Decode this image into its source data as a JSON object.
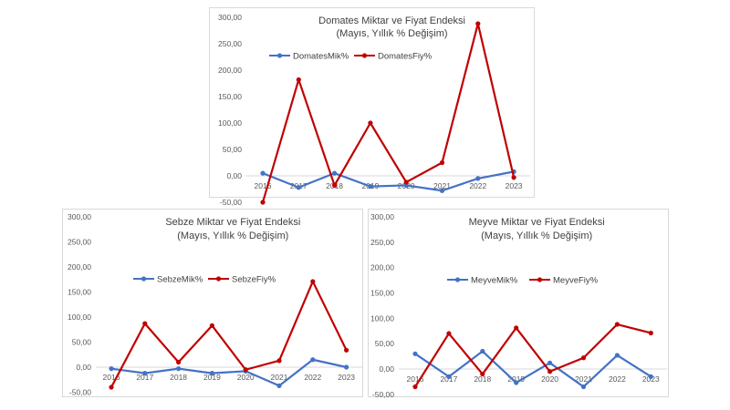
{
  "chart_data": [
    {
      "type": "line",
      "title": "Domates Miktar ve Fiyat Endeksi",
      "subtitle": "(Mayıs, Yıllık % Değişim)",
      "categories": [
        "2016",
        "2017",
        "2018",
        "2019",
        "2020",
        "2021",
        "2022",
        "2023"
      ],
      "ylim": [
        -50,
        300
      ],
      "yticks": [
        "-50,00",
        "0,00",
        "50,00",
        "100,00",
        "150,00",
        "200,00",
        "250,00",
        "300,00"
      ],
      "ytick_values": [
        -50,
        0,
        50,
        100,
        150,
        200,
        250,
        300
      ],
      "grid": false,
      "legend": "top",
      "series": [
        {
          "name": "DomatesMik%",
          "color": "#4472c4",
          "values": [
            5,
            -22,
            5,
            -20,
            -18,
            -28,
            -5,
            8
          ]
        },
        {
          "name": "DomatesFiy%",
          "color": "#c00000",
          "values": [
            -50,
            182,
            -18,
            100,
            -12,
            25,
            288,
            -3
          ]
        }
      ]
    },
    {
      "type": "line",
      "title": "Sebze Miktar ve Fiyat Endeksi",
      "subtitle": "(Mayıs, Yıllık % Değişim)",
      "categories": [
        "2016",
        "2017",
        "2018",
        "2019",
        "2020",
        "2021",
        "2022",
        "2023"
      ],
      "ylim": [
        -50,
        300
      ],
      "yticks": [
        "-50,00",
        "0,00",
        "50,00",
        "100,00",
        "150,00",
        "200,00",
        "250,00",
        "300,00"
      ],
      "ytick_values": [
        -50,
        0,
        50,
        100,
        150,
        200,
        250,
        300
      ],
      "grid": false,
      "legend": "top",
      "series": [
        {
          "name": "SebzeMik%",
          "color": "#4472c4",
          "values": [
            -3,
            -12,
            -3,
            -12,
            -8,
            -37,
            15,
            0
          ]
        },
        {
          "name": "SebzeFiy%",
          "color": "#c00000",
          "values": [
            -40,
            87,
            10,
            83,
            -5,
            13,
            171,
            34
          ]
        }
      ]
    },
    {
      "type": "line",
      "title": "Meyve Miktar ve Fiyat Endeksi",
      "subtitle": "(Mayıs, Yıllık % Değişim)",
      "categories": [
        "2016",
        "2017",
        "2018",
        "2019",
        "2020",
        "2021",
        "2022",
        "2023"
      ],
      "ylim": [
        -50,
        300
      ],
      "yticks": [
        "-50,00",
        "0,00",
        "50,00",
        "100,00",
        "150,00",
        "200,00",
        "250,00",
        "300,00"
      ],
      "ytick_values": [
        -50,
        0,
        50,
        100,
        150,
        200,
        250,
        300
      ],
      "grid": false,
      "legend": "top",
      "series": [
        {
          "name": "MeyveMik%",
          "color": "#4472c4",
          "values": [
            30,
            -15,
            35,
            -27,
            12,
            -35,
            27,
            -15
          ]
        },
        {
          "name": "MeyveFiy%",
          "color": "#c00000",
          "values": [
            -35,
            70,
            -10,
            81,
            -5,
            22,
            88,
            71
          ]
        }
      ]
    }
  ]
}
